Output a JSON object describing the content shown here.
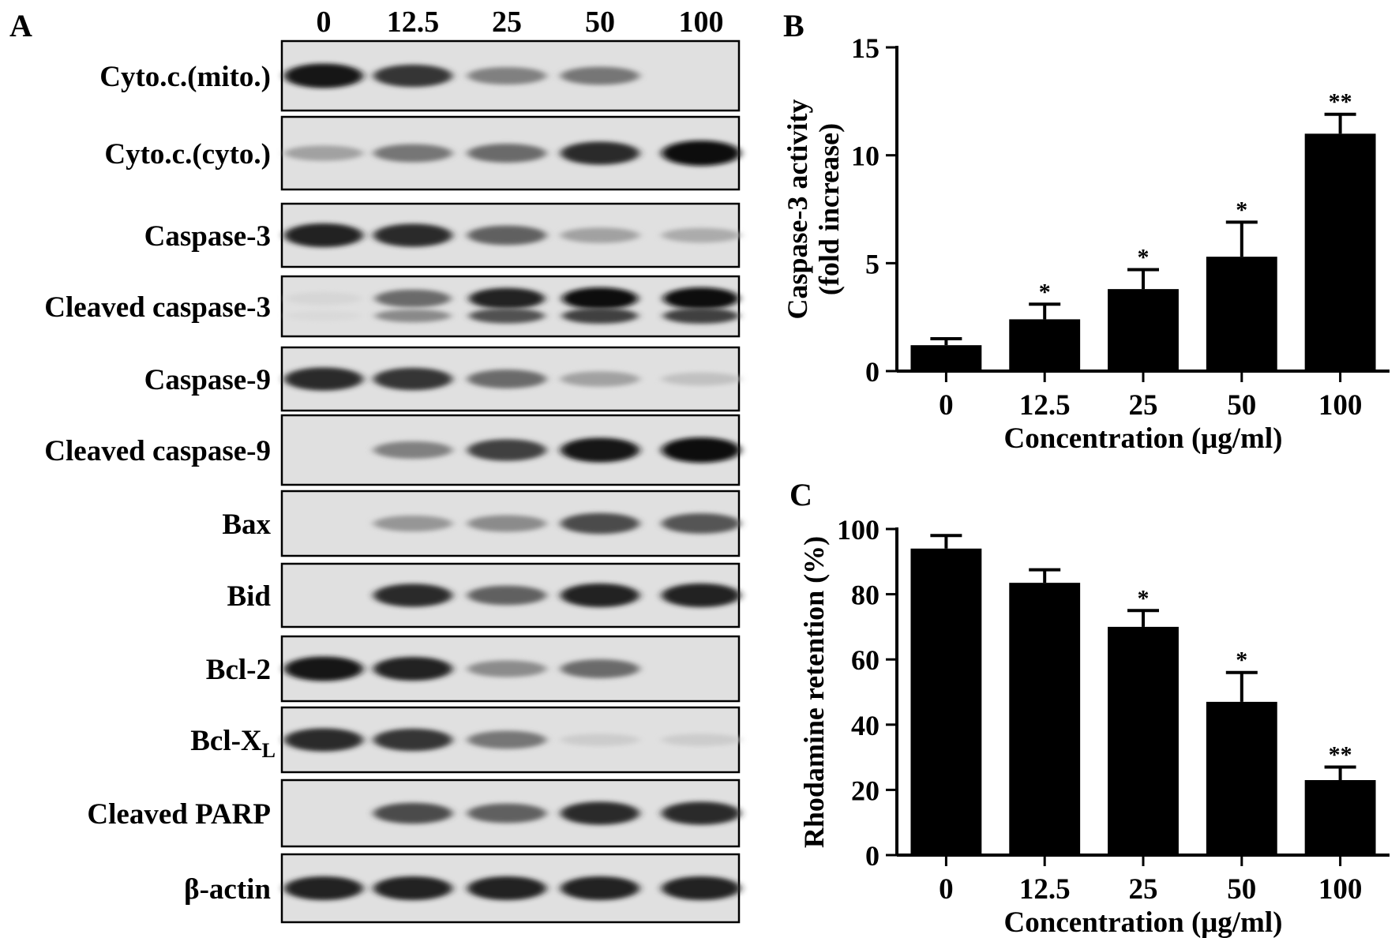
{
  "panel_a": {
    "label": "A",
    "lane_labels": [
      "0",
      "12.5",
      "25",
      "50",
      "100"
    ],
    "blots": [
      {
        "label": "Cyto.c.(mito.)",
        "bands": [
          0.95,
          0.8,
          0.45,
          0.5,
          0.0
        ]
      },
      {
        "label": "Cyto.c.(cyto.)",
        "bands": [
          0.3,
          0.5,
          0.55,
          0.85,
          1.0
        ]
      },
      {
        "label": "Caspase-3",
        "bands": [
          0.9,
          0.85,
          0.6,
          0.3,
          0.25
        ]
      },
      {
        "label": "Cleaved caspase-3",
        "bands": [
          0.05,
          0.55,
          0.9,
          1.0,
          1.0
        ],
        "double": true
      },
      {
        "label": "Caspase-9",
        "bands": [
          0.85,
          0.8,
          0.55,
          0.3,
          0.15
        ]
      },
      {
        "label": "Cleaved caspase-9",
        "bands": [
          0.0,
          0.45,
          0.75,
          0.95,
          1.0
        ]
      },
      {
        "label": "Bax",
        "bands": [
          0.0,
          0.35,
          0.4,
          0.7,
          0.65
        ]
      },
      {
        "label": "Bid",
        "bands": [
          0.0,
          0.85,
          0.6,
          0.9,
          0.9
        ]
      },
      {
        "label": "Bcl-2",
        "bands": [
          0.95,
          0.9,
          0.4,
          0.55,
          0.0
        ]
      },
      {
        "label": "Bcl-X",
        "sub": "L",
        "bands": [
          0.85,
          0.8,
          0.5,
          0.1,
          0.1
        ]
      },
      {
        "label": "Cleaved PARP",
        "bands": [
          0.0,
          0.7,
          0.6,
          0.85,
          0.85
        ]
      },
      {
        "label": "β-actin",
        "bands": [
          0.9,
          0.9,
          0.9,
          0.9,
          0.9
        ]
      }
    ]
  },
  "chart_data": [
    {
      "panel": "B",
      "type": "bar",
      "categories": [
        "0",
        "12.5",
        "25",
        "50",
        "100"
      ],
      "values": [
        1.2,
        2.4,
        3.8,
        5.3,
        11.0
      ],
      "errors": [
        0.3,
        0.7,
        0.9,
        1.6,
        0.9
      ],
      "significance": [
        "",
        "*",
        "*",
        "*",
        "**"
      ],
      "xlabel": "Concentration (μg/ml)",
      "ylabel_lines": [
        "Caspase-3 activity",
        "(fold increase)"
      ],
      "ylim": [
        0,
        15
      ],
      "yticks": [
        0,
        5,
        10,
        15
      ],
      "bar_color": "#000000"
    },
    {
      "panel": "C",
      "type": "bar",
      "categories": [
        "0",
        "12.5",
        "25",
        "50",
        "100"
      ],
      "values": [
        94,
        83.5,
        70,
        47,
        23
      ],
      "errors": [
        4,
        4,
        5,
        9,
        4
      ],
      "significance": [
        "",
        "",
        "*",
        "*",
        "**"
      ],
      "xlabel": "Concentration (μg/ml)",
      "ylabel_lines": [
        "Rhodamine retention (%)"
      ],
      "ylim": [
        0,
        100
      ],
      "yticks": [
        0,
        20,
        40,
        60,
        80,
        100
      ],
      "bar_color": "#000000"
    }
  ]
}
